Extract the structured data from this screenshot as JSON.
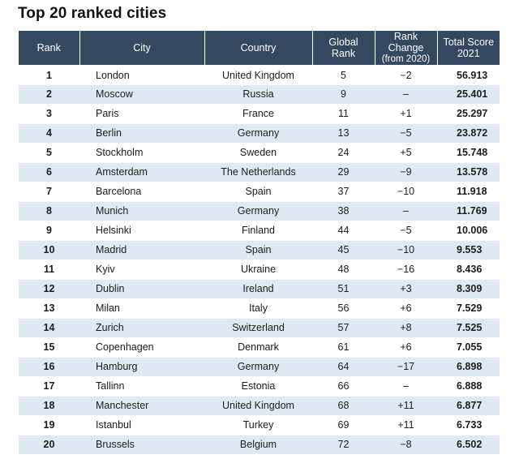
{
  "title": "Top 20 ranked cities",
  "headers": {
    "rank": "Rank",
    "city": "City",
    "country": "Country",
    "global_line1": "Global",
    "global_line2": "Rank",
    "change_line1": "Rank Change",
    "change_line2": "(from 2020)",
    "total_line1": "Total Score",
    "total_line2": "2021"
  },
  "rows": [
    {
      "rank": "1",
      "city": "London",
      "country": "United Kingdom",
      "global_rank": "5",
      "change": "−2",
      "score": "56.913"
    },
    {
      "rank": "2",
      "city": "Moscow",
      "country": "Russia",
      "global_rank": "9",
      "change": "–",
      "score": "25.401"
    },
    {
      "rank": "3",
      "city": "Paris",
      "country": "France",
      "global_rank": "11",
      "change": "+1",
      "score": "25.297"
    },
    {
      "rank": "4",
      "city": "Berlin",
      "country": "Germany",
      "global_rank": "13",
      "change": "−5",
      "score": "23.872"
    },
    {
      "rank": "5",
      "city": "Stockholm",
      "country": "Sweden",
      "global_rank": "24",
      "change": "+5",
      "score": "15.748"
    },
    {
      "rank": "6",
      "city": "Amsterdam",
      "country": "The Netherlands",
      "global_rank": "29",
      "change": "−9",
      "score": "13.578"
    },
    {
      "rank": "7",
      "city": "Barcelona",
      "country": "Spain",
      "global_rank": "37",
      "change": "−10",
      "score": "11.918"
    },
    {
      "rank": "8",
      "city": "Munich",
      "country": "Germany",
      "global_rank": "38",
      "change": "–",
      "score": "11.769"
    },
    {
      "rank": "9",
      "city": "Helsinki",
      "country": "Finland",
      "global_rank": "44",
      "change": "−5",
      "score": "10.006"
    },
    {
      "rank": "10",
      "city": "Madrid",
      "country": "Spain",
      "global_rank": "45",
      "change": "−10",
      "score": "9.553"
    },
    {
      "rank": "11",
      "city": "Kyiv",
      "country": "Ukraine",
      "global_rank": "48",
      "change": "−16",
      "score": "8.436"
    },
    {
      "rank": "12",
      "city": "Dublin",
      "country": "Ireland",
      "global_rank": "51",
      "change": "+3",
      "score": "8.309"
    },
    {
      "rank": "13",
      "city": "Milan",
      "country": "Italy",
      "global_rank": "56",
      "change": "+6",
      "score": "7.529"
    },
    {
      "rank": "14",
      "city": "Zurich",
      "country": "Switzerland",
      "global_rank": "57",
      "change": "+8",
      "score": "7.525"
    },
    {
      "rank": "15",
      "city": "Copenhagen",
      "country": "Denmark",
      "global_rank": "61",
      "change": "+6",
      "score": "7.055"
    },
    {
      "rank": "16",
      "city": "Hamburg",
      "country": "Germany",
      "global_rank": "64",
      "change": "−17",
      "score": "6.898"
    },
    {
      "rank": "17",
      "city": "Tallinn",
      "country": "Estonia",
      "global_rank": "66",
      "change": "–",
      "score": "6.888"
    },
    {
      "rank": "18",
      "city": "Manchester",
      "country": "United Kingdom",
      "global_rank": "68",
      "change": "+11",
      "score": "6.877"
    },
    {
      "rank": "19",
      "city": "Istanbul",
      "country": "Turkey",
      "global_rank": "69",
      "change": "+11",
      "score": "6.733"
    },
    {
      "rank": "20",
      "city": "Brussels",
      "country": "Belgium",
      "global_rank": "72",
      "change": "−8",
      "score": "6.502"
    }
  ],
  "colors": {
    "header_bg": "#34495f",
    "stripe_bg": "#dfe9f4"
  }
}
